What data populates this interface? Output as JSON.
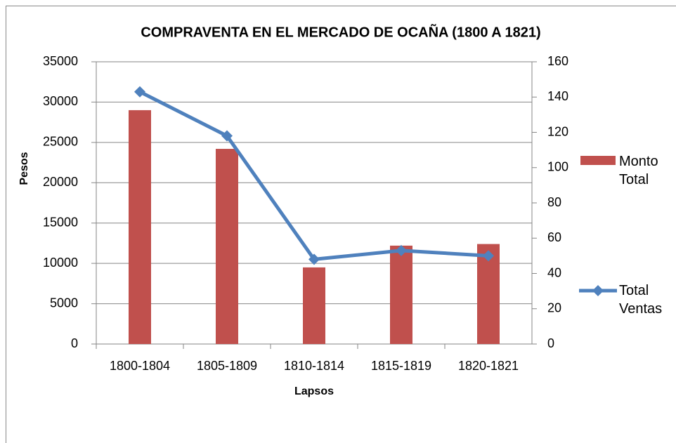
{
  "chart_data": {
    "type": "bar",
    "title": "COMPRAVENTA EN EL MERCADO DE OCAÑA (1800 A 1821)",
    "x_label": "Lapsos",
    "y_label": "Pesos",
    "categories": [
      "1800-1804",
      "1805-1809",
      "1810-1814",
      "1815-1819",
      "1820-1821"
    ],
    "series": [
      {
        "name": "Monto Total",
        "type": "bar",
        "color": "#c0504d",
        "values": [
          29000,
          24200,
          9500,
          12200,
          12400
        ]
      },
      {
        "name": "Total Ventas",
        "type": "line",
        "axis": "y2",
        "color": "#4f81bd",
        "values": [
          143,
          118,
          48,
          53,
          50
        ]
      }
    ],
    "ylim": [
      0,
      35000
    ],
    "yticks": [
      0,
      5000,
      10000,
      15000,
      20000,
      25000,
      30000,
      35000
    ],
    "y2lim": [
      0,
      160
    ],
    "y2ticks": [
      0,
      20,
      40,
      60,
      80,
      100,
      120,
      140,
      160
    ],
    "grid": true
  }
}
